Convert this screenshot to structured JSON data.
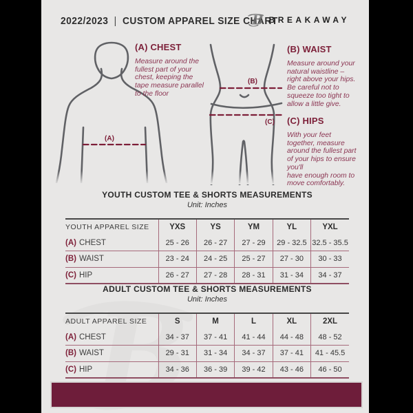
{
  "header": {
    "year": "2022/2023",
    "divider": "|",
    "title": "CUSTOM APPAREL SIZE CHART",
    "brand": "BREAKAWAY"
  },
  "colors": {
    "accent_maroon": "#7d1f38",
    "table_line": "#a5697a",
    "footer_bar": "#6e1d3a",
    "page_bg": "#e8e7e6",
    "figure_outline": "#606165"
  },
  "figure": {
    "chest_tag": "(A)",
    "waist_tag": "(B)",
    "hips_tag": "(C)"
  },
  "instructions": {
    "chest": {
      "tag": "(A)",
      "name": "CHEST",
      "text": "Measure around the\nfullest part of your\nchest, keeping the\ntape measure parallel\nto the floor"
    },
    "waist": {
      "tag": "(B)",
      "name": "WAIST",
      "text": "Measure around your\nnatural waistline –\nright above your hips.\nBe careful not to\nsqueeze too tight to\nallow a little give."
    },
    "hips": {
      "tag": "(C)",
      "name": "HIPS",
      "text": "With your feet\ntogether, measure\naround the fullest part\nof your hips to ensure\nyou'll\nhave enough room to\nmove comfortably."
    }
  },
  "tables": {
    "youth": {
      "title": "YOUTH CUSTOM TEE & SHORTS MEASUREMENTS",
      "unit": "Unit: Inches",
      "header": [
        "YOUTH APPAREL SIZE",
        "YXS",
        "YS",
        "YM",
        "YL",
        "YXL"
      ],
      "rows": [
        {
          "key": "(A)",
          "label": "CHEST",
          "values": [
            "25 - 26",
            "26 - 27",
            "27 - 29",
            "29 - 32.5",
            "32.5 - 35.5"
          ]
        },
        {
          "key": "(B)",
          "label": "WAIST",
          "values": [
            "23 - 24",
            "24 - 25",
            "25 - 27",
            "27 - 30",
            "30 - 33"
          ]
        },
        {
          "key": "(C)",
          "label": "HIP",
          "values": [
            "26 - 27",
            "27 - 28",
            "28 - 31",
            "31 - 34",
            "34 - 37"
          ]
        }
      ]
    },
    "adult": {
      "title": "ADULT CUSTOM TEE & SHORTS MEASUREMENTS",
      "unit": "Unit: Inches",
      "header": [
        "ADULT APPAREL SIZE",
        "S",
        "M",
        "L",
        "XL",
        "2XL"
      ],
      "rows": [
        {
          "key": "(A)",
          "label": "CHEST",
          "values": [
            "34 - 37",
            "37 - 41",
            "41 - 44",
            "44 - 48",
            "48 - 52"
          ]
        },
        {
          "key": "(B)",
          "label": "WAIST",
          "values": [
            "29 - 31",
            "31 - 34",
            "34 - 37",
            "37 - 41",
            "41 - 45.5"
          ]
        },
        {
          "key": "(C)",
          "label": "HIP",
          "values": [
            "34 - 36",
            "36 - 39",
            "39 - 42",
            "43 - 46",
            "46 - 50"
          ]
        }
      ]
    }
  }
}
